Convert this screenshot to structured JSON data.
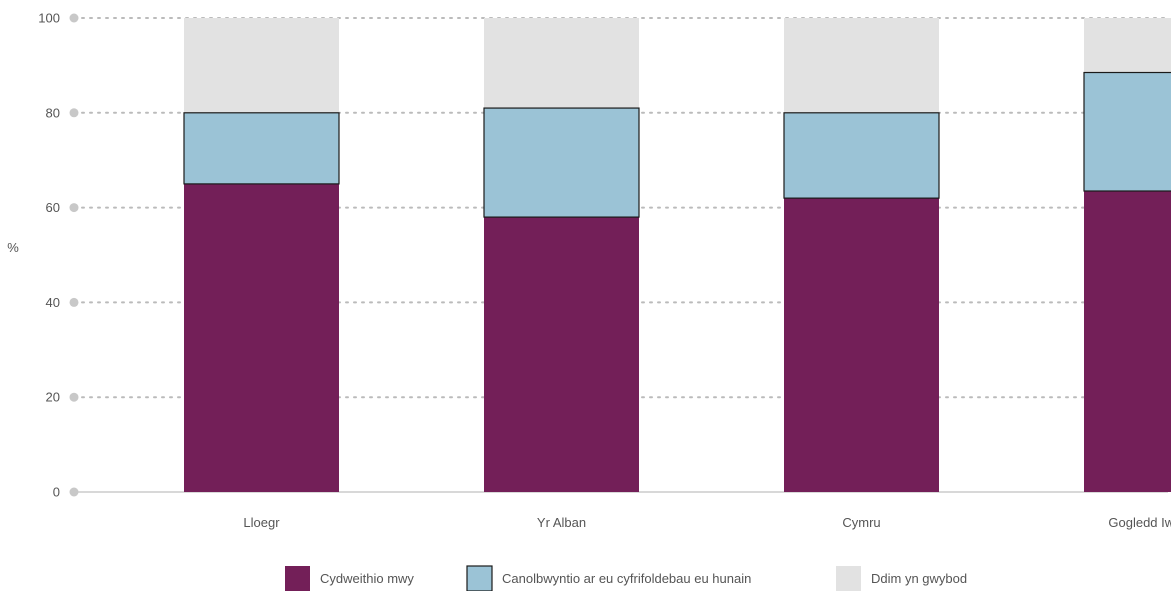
{
  "chart_data": {
    "type": "bar",
    "stacked": true,
    "ylabel": "%",
    "ylim": [
      0,
      100
    ],
    "yticks": [
      0,
      20,
      40,
      60,
      80,
      100
    ],
    "grid": true,
    "legend_position": "bottom",
    "categories": [
      "Lloegr",
      "Yr Alban",
      "Cymru",
      "Gogledd Iwerddon"
    ],
    "series": [
      {
        "name": "Cydweithio mwy",
        "color": "#731f58",
        "values": [
          65,
          58,
          62,
          63.5
        ]
      },
      {
        "name": "Canolbwyntio ar eu cyfrifoldebau eu hunain",
        "color": "#9bc3d6",
        "values": [
          15,
          23,
          18,
          25
        ]
      },
      {
        "name": "Ddim yn gwybod",
        "color": "#e2e2e2",
        "values": [
          20,
          19,
          20,
          11.5
        ]
      }
    ]
  }
}
